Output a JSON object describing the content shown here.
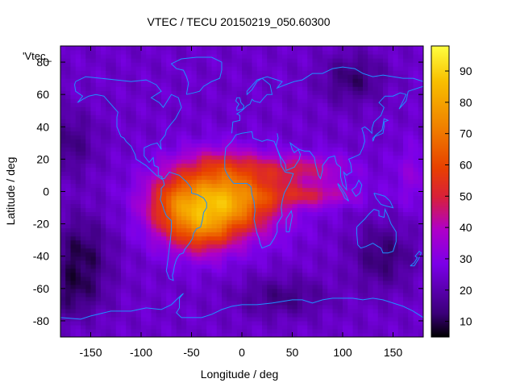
{
  "chart_data": {
    "type": "heatmap",
    "title": "VTEC / TECU 20150219_050.60300",
    "xlabel": "Longitude / deg",
    "ylabel": "Latitude / deg",
    "legend_key": "'Vtec_",
    "xlim": [
      -180,
      180
    ],
    "ylim": [
      -90,
      90
    ],
    "x_ticks": [
      -150,
      -100,
      -50,
      0,
      50,
      100,
      150
    ],
    "y_ticks": [
      -80,
      -60,
      -40,
      -20,
      0,
      20,
      40,
      60,
      80
    ],
    "colorbar": {
      "range": [
        5,
        98
      ],
      "ticks": [
        10,
        20,
        30,
        40,
        50,
        60,
        70,
        80,
        90
      ],
      "colormap": [
        "#000000",
        "#3a0078",
        "#7b00e8",
        "#b000c8",
        "#d8203a",
        "#e84000",
        "#f08000",
        "#f8c000",
        "#ffff40"
      ]
    },
    "grid": false,
    "colormap_name": "black-purple-red-orange-yellow",
    "coastline_color": "#1e90ff",
    "peak": {
      "lon": -15,
      "lat": -5,
      "value": 95
    },
    "background_value": 25
  }
}
